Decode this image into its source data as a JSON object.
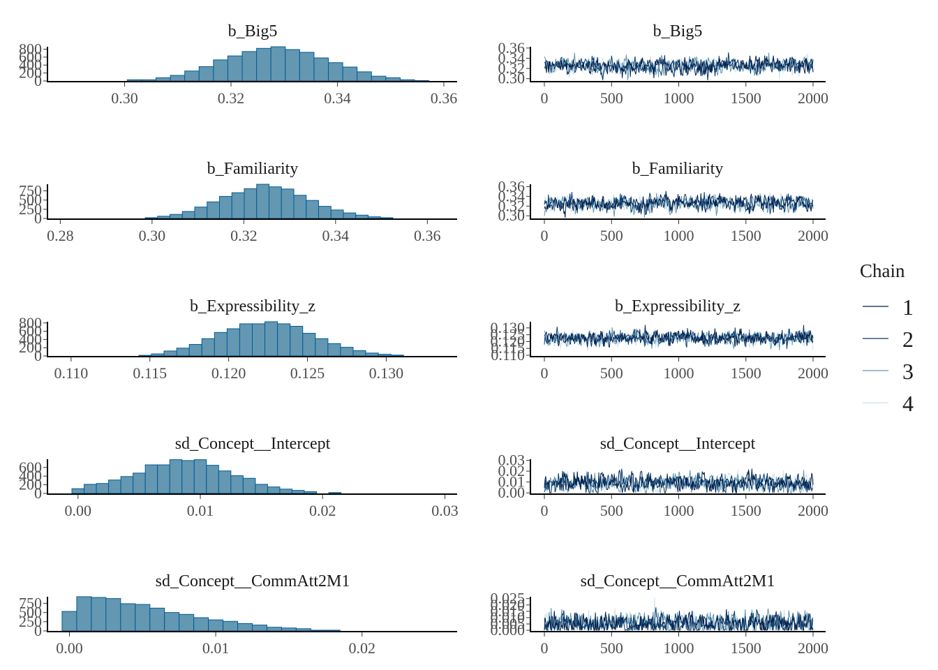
{
  "chart_data": {
    "type": "histogram+trace",
    "title": "",
    "legend": {
      "title": "Chain",
      "placement": "right",
      "entries": [
        {
          "label": "1",
          "color": "#011f4b"
        },
        {
          "label": "2",
          "color": "#03396c"
        },
        {
          "label": "3",
          "color": "#6497b1"
        },
        {
          "label": "4",
          "color": "#d1e1ec"
        }
      ]
    },
    "histogram_style": {
      "fill": "#6497b1",
      "stroke": "#005b96"
    },
    "panels": [
      {
        "parameter": "b_Big5",
        "histogram": {
          "xlim": [
            0.2855,
            0.3625
          ],
          "xticks": [
            0.3,
            0.32,
            0.34,
            0.36
          ],
          "xtick_labels": [
            "0.30",
            "0.32",
            "0.34",
            "0.36"
          ],
          "ylim": [
            0,
            860
          ],
          "yticks": [
            0,
            200,
            400,
            600,
            800
          ],
          "ytick_labels": [
            "0",
            "200",
            "400",
            "600",
            "800"
          ],
          "bin_start": 0.3005,
          "bin_width": 0.0027,
          "counts": [
            30,
            30,
            80,
            140,
            250,
            360,
            530,
            630,
            740,
            820,
            860,
            790,
            720,
            580,
            460,
            350,
            230,
            120,
            80,
            30,
            10
          ]
        },
        "trace": {
          "xlim": [
            -100,
            2100
          ],
          "xticks": [
            0,
            500,
            1000,
            1500,
            2000
          ],
          "xtick_labels": [
            "0",
            "500",
            "1000",
            "1500",
            "2000"
          ],
          "ylim": [
            0.2955,
            0.3625
          ],
          "yticks": [
            0.3,
            0.32,
            0.34,
            0.36
          ],
          "ytick_labels": [
            "0.30",
            "0.32",
            "0.34",
            "0.36"
          ],
          "iterations": 2000,
          "mean": 0.325,
          "sd": 0.0085
        }
      },
      {
        "parameter": "b_Familiarity",
        "histogram": {
          "xlim": [
            0.2772,
            0.3665
          ],
          "xticks": [
            0.28,
            0.3,
            0.32,
            0.34,
            0.36
          ],
          "xtick_labels": [
            "0.28",
            "0.30",
            "0.32",
            "0.34",
            "0.36"
          ],
          "ylim": [
            0,
            930
          ],
          "yticks": [
            0,
            250,
            500,
            750
          ],
          "ytick_labels": [
            "0",
            "250",
            "500",
            "750"
          ],
          "bin_start": 0.2985,
          "bin_width": 0.0027,
          "counts": [
            20,
            60,
            110,
            190,
            310,
            450,
            600,
            700,
            810,
            930,
            860,
            800,
            630,
            490,
            330,
            230,
            150,
            90,
            45,
            20
          ]
        },
        "trace": {
          "xlim": [
            -100,
            2100
          ],
          "xticks": [
            0,
            500,
            1000,
            1500,
            2000
          ],
          "xtick_labels": [
            "0",
            "500",
            "1000",
            "1500",
            "2000"
          ],
          "ylim": [
            0.2945,
            0.365
          ],
          "yticks": [
            0.3,
            0.32,
            0.34,
            0.36
          ],
          "ytick_labels": [
            "0.30",
            "0.32",
            "0.34",
            "0.36"
          ],
          "iterations": 2000,
          "mean": 0.325,
          "sd": 0.0085
        }
      },
      {
        "parameter": "b_Expressibility_z",
        "histogram": {
          "xlim": [
            0.1085,
            0.1345
          ],
          "xticks": [
            0.11,
            0.115,
            0.12,
            0.125,
            0.13
          ],
          "xtick_labels": [
            "0.110",
            "0.115",
            "0.120",
            "0.125",
            "0.130"
          ],
          "ylim": [
            0,
            830
          ],
          "yticks": [
            0,
            200,
            400,
            600,
            800
          ],
          "ytick_labels": [
            "0",
            "200",
            "400",
            "600",
            "800"
          ],
          "bin_start": 0.1143,
          "bin_width": 0.0008,
          "counts": [
            15,
            50,
            120,
            190,
            280,
            420,
            570,
            660,
            780,
            780,
            830,
            780,
            720,
            550,
            420,
            300,
            210,
            130,
            70,
            40,
            20
          ]
        },
        "trace": {
          "xlim": [
            -100,
            2100
          ],
          "xticks": [
            0,
            500,
            1000,
            1500,
            2000
          ],
          "xtick_labels": [
            "0",
            "500",
            "1000",
            "1500",
            "2000"
          ],
          "ylim": [
            0.1095,
            0.1345
          ],
          "yticks": [
            0.11,
            0.115,
            0.12,
            0.125,
            0.13
          ],
          "ytick_labels": [
            "0.110",
            "0.115",
            "0.120",
            "0.125",
            "0.130"
          ],
          "iterations": 2000,
          "mean": 0.1225,
          "sd": 0.0028
        }
      },
      {
        "parameter": "sd_Concept__Intercept",
        "histogram": {
          "xlim": [
            -0.0025,
            0.031
          ],
          "xticks": [
            0.0,
            0.01,
            0.02,
            0.03
          ],
          "xtick_labels": [
            "0.00",
            "0.01",
            "0.02",
            "0.03"
          ],
          "ylim": [
            0,
            790
          ],
          "yticks": [
            0,
            200,
            400,
            600
          ],
          "ytick_labels": [
            "0",
            "200",
            "400",
            "600"
          ],
          "bin_start": -0.0005,
          "bin_width": 0.001,
          "counts": [
            110,
            210,
            230,
            310,
            390,
            470,
            660,
            660,
            780,
            760,
            780,
            650,
            520,
            410,
            350,
            210,
            150,
            100,
            70,
            40,
            0,
            20
          ]
        },
        "trace": {
          "xlim": [
            -100,
            2100
          ],
          "xticks": [
            0,
            500,
            1000,
            1500,
            2000
          ],
          "xtick_labels": [
            "0",
            "500",
            "1000",
            "1500",
            "2000"
          ],
          "ylim": [
            -0.0005,
            0.031
          ],
          "yticks": [
            0.0,
            0.01,
            0.02,
            0.03
          ],
          "ytick_labels": [
            "0.00",
            "0.01",
            "0.02",
            "0.03"
          ],
          "iterations": 2000,
          "mean": 0.009,
          "sd": 0.0045
        }
      },
      {
        "parameter": "sd_Concept__CommAtt2M1",
        "histogram": {
          "xlim": [
            -0.0015,
            0.0265
          ],
          "xticks": [
            0.0,
            0.01,
            0.02
          ],
          "xtick_labels": [
            "0.00",
            "0.01",
            "0.02"
          ],
          "ylim": [
            0,
            930
          ],
          "yticks": [
            0,
            250,
            500,
            750
          ],
          "ytick_labels": [
            "0",
            "250",
            "500",
            "750"
          ],
          "bin_start": -0.0005,
          "bin_width": 0.001,
          "counts": [
            530,
            930,
            910,
            880,
            740,
            720,
            620,
            500,
            450,
            360,
            300,
            260,
            200,
            160,
            100,
            80,
            60,
            20,
            20
          ]
        },
        "trace": {
          "xlim": [
            -100,
            2100
          ],
          "xticks": [
            0,
            500,
            1000,
            1500,
            2000
          ],
          "xtick_labels": [
            "0",
            "500",
            "1000",
            "1500",
            "2000"
          ],
          "ylim": [
            -0.0005,
            0.0265
          ],
          "yticks": [
            0.0,
            0.005,
            0.01,
            0.015,
            0.02,
            0.025
          ],
          "ytick_labels": [
            "0.000",
            "0.005",
            "0.010",
            "0.015",
            "0.020",
            "0.025"
          ],
          "iterations": 2000,
          "mean": 0.0055,
          "sd": 0.0045
        }
      }
    ]
  }
}
